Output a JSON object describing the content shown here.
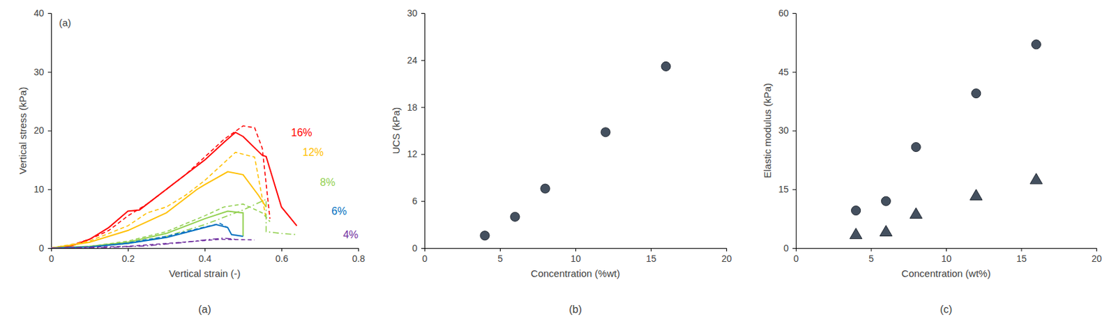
{
  "chart_data": [
    {
      "type": "line",
      "caption": "(a)",
      "panel_label": "(a)",
      "x_label": "Vertical strain (-)",
      "y_label": "Vertical stress (kPa)",
      "xlim": [
        0,
        0.8
      ],
      "xticks": [
        0,
        0.2,
        0.4,
        0.6,
        0.8
      ],
      "ylim": [
        0,
        40
      ],
      "yticks": [
        0,
        10,
        20,
        30,
        40
      ],
      "series": [
        {
          "color": "#ff0000",
          "line_style": "solid",
          "x": [
            0,
            0.05,
            0.1,
            0.15,
            0.2,
            0.23,
            0.3,
            0.35,
            0.4,
            0.45,
            0.48,
            0.5,
            0.55,
            0.56,
            0.6,
            0.64
          ],
          "values": [
            0,
            0.3,
            1.5,
            3.5,
            6.3,
            6.5,
            10,
            12.5,
            15,
            18,
            19.7,
            19,
            15.8,
            15.6,
            7,
            3.8
          ]
        },
        {
          "color": "#ff0000",
          "line_style": "dashed",
          "x": [
            0,
            0.05,
            0.1,
            0.15,
            0.2,
            0.25,
            0.3,
            0.35,
            0.4,
            0.45,
            0.5,
            0.53,
            0.55,
            0.57
          ],
          "values": [
            0,
            0.5,
            1.5,
            3,
            5.5,
            7.5,
            10,
            12.5,
            15.5,
            18.5,
            20.8,
            20.5,
            17,
            5
          ]
        },
        {
          "color": "#ffc000",
          "line_style": "solid",
          "x": [
            0,
            0.1,
            0.2,
            0.3,
            0.38,
            0.4,
            0.46,
            0.5,
            0.54,
            0.56
          ],
          "values": [
            0,
            1,
            3,
            6,
            10,
            10.8,
            13,
            12.5,
            9,
            7
          ]
        },
        {
          "color": "#ffc000",
          "line_style": "dashed",
          "x": [
            0,
            0.1,
            0.2,
            0.25,
            0.3,
            0.35,
            0.4,
            0.45,
            0.48,
            0.53,
            0.56
          ],
          "values": [
            0,
            1.2,
            3.8,
            6,
            7,
            9,
            11.5,
            14.5,
            16.3,
            15.5,
            5
          ]
        },
        {
          "color": "#92d050",
          "line_style": "solid",
          "x": [
            0,
            0.1,
            0.2,
            0.3,
            0.4,
            0.46,
            0.5,
            0.5
          ],
          "values": [
            0,
            0.3,
            1,
            2.5,
            5,
            6.3,
            6,
            2
          ]
        },
        {
          "color": "#92d050",
          "line_style": "dashed",
          "x": [
            0,
            0.1,
            0.2,
            0.3,
            0.4,
            0.45,
            0.5,
            0.55,
            0.57
          ],
          "values": [
            0,
            0.3,
            1.2,
            2.8,
            5.5,
            7,
            7.5,
            6,
            4.5
          ]
        },
        {
          "color": "#92d050",
          "line_style": "dashdot",
          "x": [
            0,
            0.1,
            0.2,
            0.3,
            0.4,
            0.5,
            0.56,
            0.56,
            0.6,
            0.64
          ],
          "values": [
            0,
            0.2,
            0.8,
            2,
            4,
            6.5,
            8.3,
            2.8,
            2.5,
            2.3
          ]
        },
        {
          "color": "#0070c0",
          "line_style": "solid",
          "x": [
            0,
            0.1,
            0.2,
            0.3,
            0.4,
            0.43,
            0.46,
            0.47,
            0.5
          ],
          "values": [
            0,
            0.2,
            0.8,
            1.8,
            3.5,
            4,
            3.5,
            2.3,
            2
          ]
        },
        {
          "color": "#0070c0",
          "line_style": "dashed",
          "x": [
            0,
            0.1,
            0.2,
            0.3,
            0.4,
            0.44,
            0.46
          ],
          "values": [
            0,
            0.2,
            0.9,
            2,
            3.6,
            4.2,
            3.5
          ]
        },
        {
          "color": "#7030a0",
          "line_style": "dashdot",
          "x": [
            0,
            0.15,
            0.25,
            0.35,
            0.4,
            0.45,
            0.48
          ],
          "values": [
            0,
            0.1,
            0.4,
            1,
            1.4,
            1.7,
            1.5
          ]
        },
        {
          "color": "#7030a0",
          "line_style": "dashed",
          "x": [
            0,
            0.2,
            0.3,
            0.4,
            0.44,
            0.53
          ],
          "values": [
            0,
            0.3,
            0.8,
            1.3,
            1.5,
            1.4
          ]
        }
      ],
      "annotations": [
        {
          "text": "16%",
          "x": 0.68,
          "y": 19.5,
          "color": "#ff0000"
        },
        {
          "text": "12%",
          "x": 0.71,
          "y": 16.2,
          "color": "#ffc000"
        },
        {
          "text": "8%",
          "x": 0.74,
          "y": 11,
          "color": "#92d050"
        },
        {
          "text": "6%",
          "x": 0.77,
          "y": 6.2,
          "color": "#0070c0"
        },
        {
          "text": "4%",
          "x": 0.8,
          "y": 2.1,
          "color": "#7030a0"
        }
      ]
    },
    {
      "type": "scatter",
      "caption": "(b)",
      "x_label": "Concentration (%wt)",
      "y_label": "UCS (kPa)",
      "xlim": [
        0,
        20
      ],
      "xticks": [
        0,
        5,
        10,
        15,
        20
      ],
      "ylim": [
        0,
        30
      ],
      "yticks": [
        0,
        6,
        12,
        18,
        24,
        30
      ],
      "x": [
        4,
        6,
        8,
        12,
        16
      ],
      "series": [
        {
          "marker": "circle",
          "color": "#44505f",
          "values": [
            1.6,
            4,
            7.6,
            14.8,
            23.2
          ]
        }
      ]
    },
    {
      "type": "scatter",
      "caption": "(c)",
      "x_label": "Concentration (wt%)",
      "y_label": "Elastic modulus (kPa)",
      "xlim": [
        0,
        20
      ],
      "xticks": [
        0,
        5,
        10,
        15,
        20
      ],
      "ylim": [
        0,
        60
      ],
      "yticks": [
        0,
        15,
        30,
        45,
        60
      ],
      "x": [
        4,
        6,
        8,
        12,
        16
      ],
      "series": [
        {
          "marker": "circle",
          "color": "#44505f",
          "values": [
            9.6,
            12,
            25.8,
            39.5,
            52
          ]
        },
        {
          "marker": "triangle",
          "color": "#44505f",
          "values": [
            3.3,
            4,
            8.5,
            13.2,
            17.3
          ]
        }
      ]
    }
  ]
}
